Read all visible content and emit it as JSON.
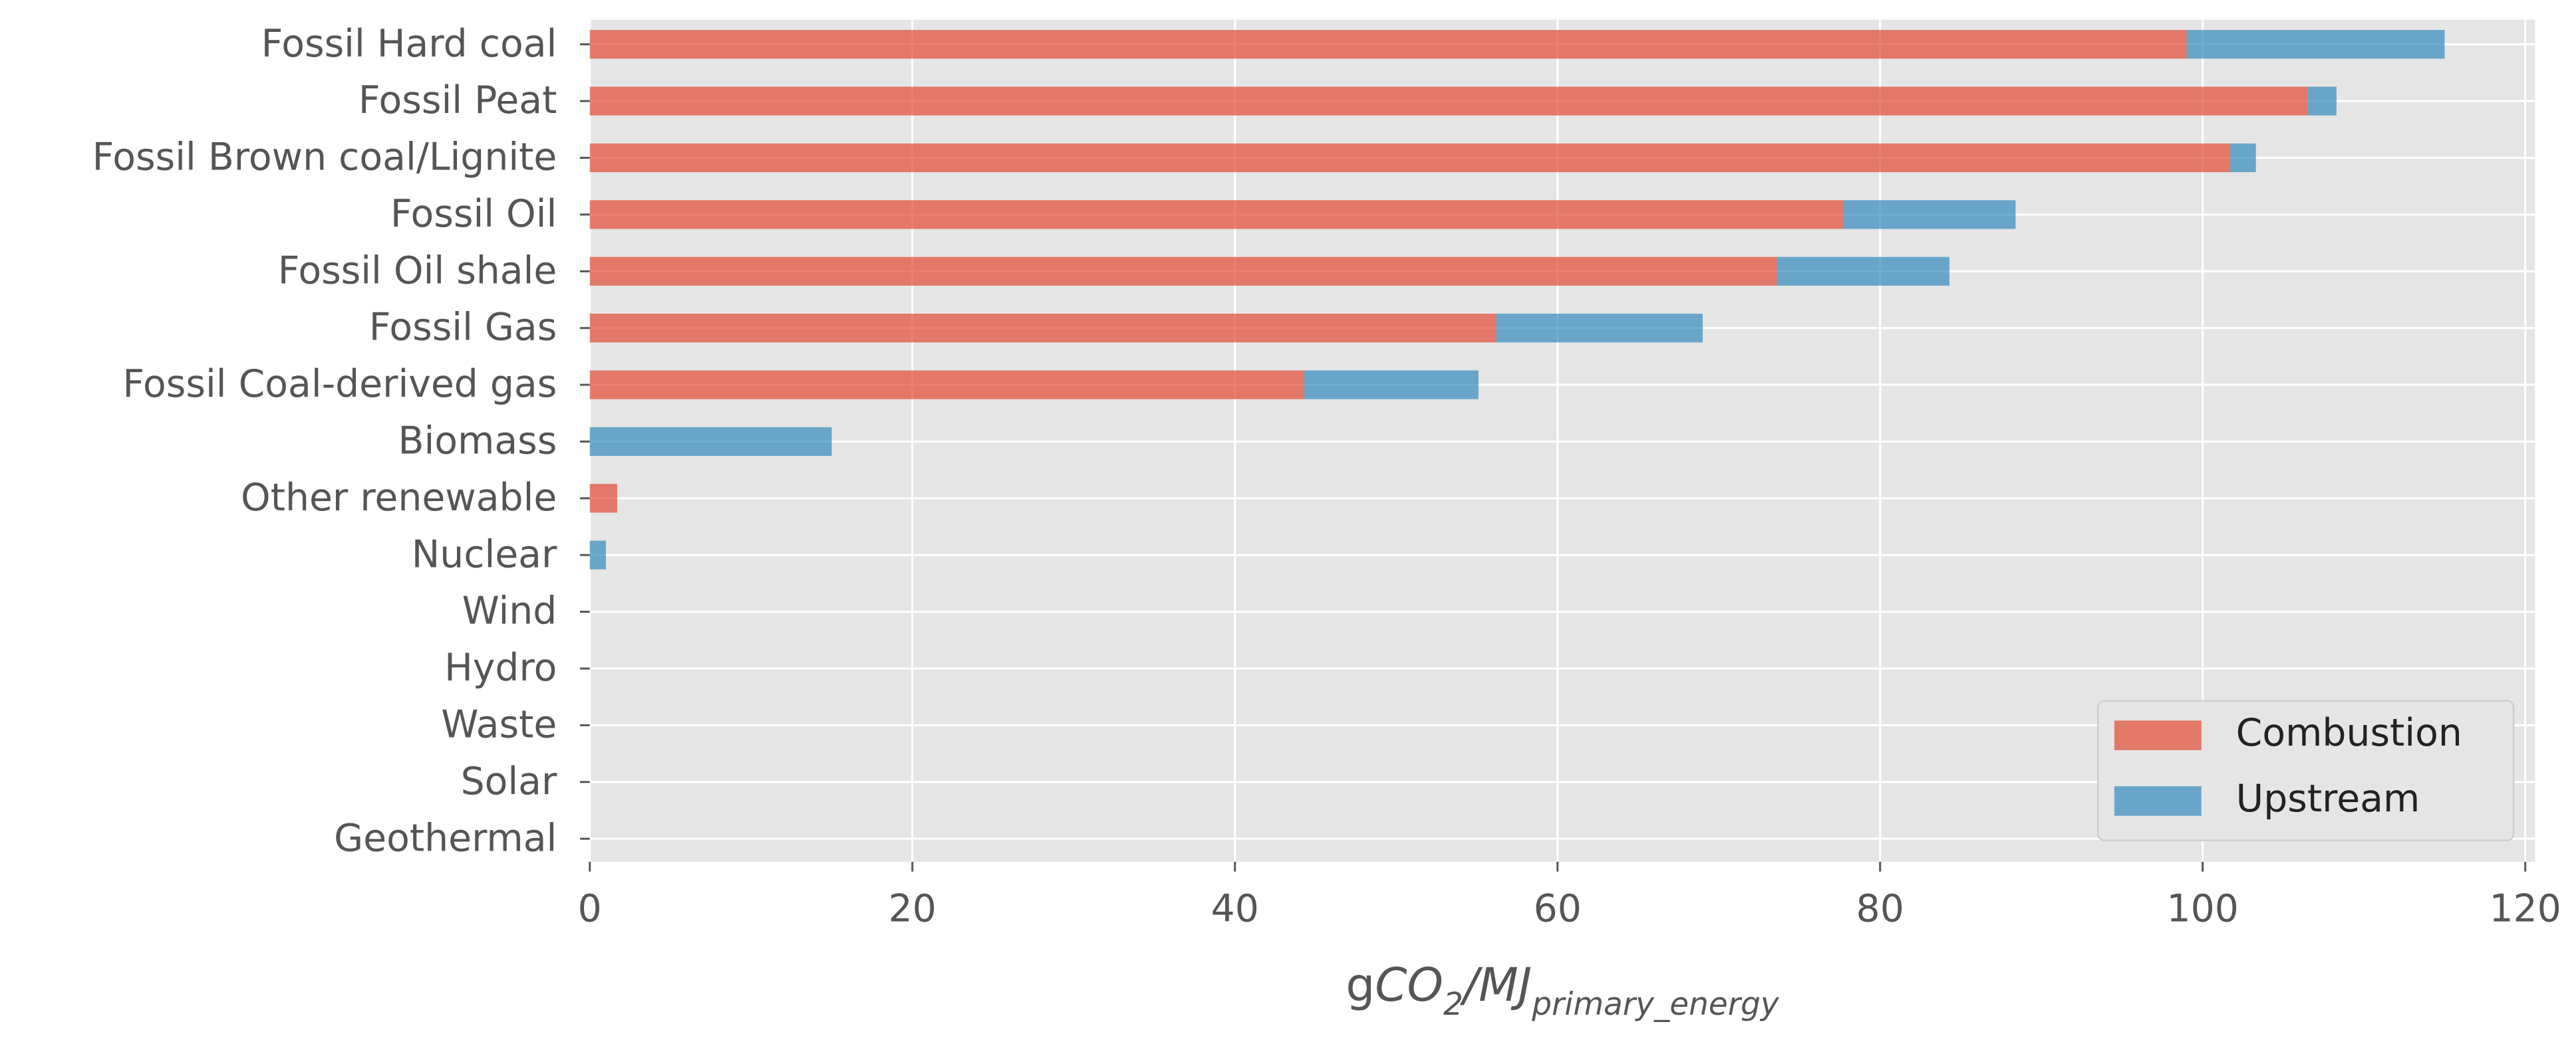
{
  "chart_data": {
    "type": "barh_stacked",
    "categories": [
      "Fossil Hard coal",
      "Fossil Peat",
      "Fossil Brown coal/Lignite",
      "Fossil Oil",
      "Fossil Oil shale",
      "Fossil Gas",
      "Fossil Coal-derived gas",
      "Biomass",
      "Other renewable",
      "Nuclear",
      "Wind",
      "Hydro",
      "Waste",
      "Solar",
      "Geothermal"
    ],
    "series": [
      {
        "name": "Combustion",
        "color": "#E24A33",
        "values": [
          99,
          106.5,
          101.7,
          77.7,
          73.6,
          56.2,
          44.3,
          0,
          1.7,
          0,
          0,
          0,
          0,
          0,
          0
        ]
      },
      {
        "name": "Upstream",
        "color": "#348ABD",
        "values": [
          16,
          1.8,
          1.6,
          10.7,
          10.7,
          12.8,
          10.8,
          15,
          0,
          1,
          0,
          0,
          0,
          0,
          0
        ]
      }
    ],
    "x_label": [
      "g",
      "CO",
      "2",
      "/MJ",
      "primary_energy"
    ],
    "xlim": [
      0,
      120.6
    ],
    "xticks": [
      0,
      20,
      40,
      60,
      80,
      100,
      120
    ],
    "grid": true,
    "legend": "lower right",
    "opacity": 0.7
  }
}
